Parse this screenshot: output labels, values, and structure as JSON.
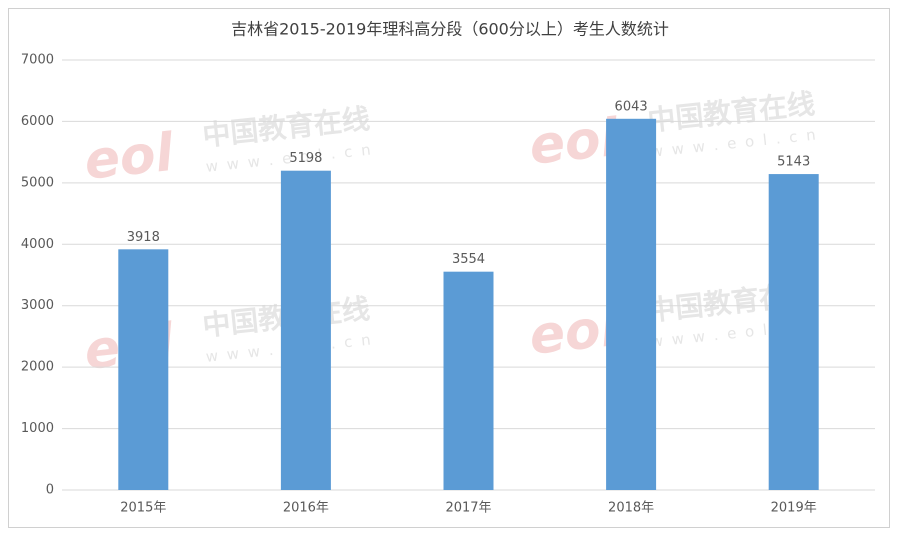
{
  "chart_data": {
    "type": "bar",
    "title": "吉林省2015-2019年理科高分段（600分以上）考生人数统计",
    "categories": [
      "2015年",
      "2016年",
      "2017年",
      "2018年",
      "2019年"
    ],
    "values": [
      3918,
      5198,
      3554,
      6043,
      5143
    ],
    "color": "#5b9bd5",
    "ylim": [
      0,
      7000
    ],
    "yticks": [
      0,
      1000,
      2000,
      3000,
      4000,
      5000,
      6000,
      7000
    ],
    "grid": true,
    "watermark": {
      "logo": "eol",
      "name": "中国教育在线",
      "site": "w w w . e o l . c n"
    }
  }
}
